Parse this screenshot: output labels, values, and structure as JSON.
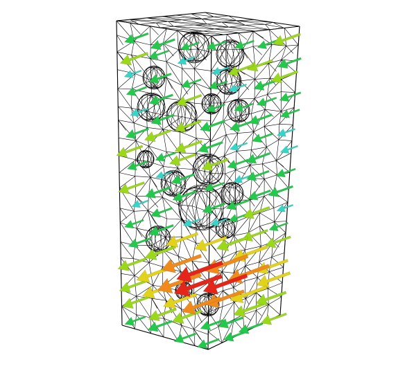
{
  "scene": {
    "background": "#ffffff",
    "mesh_color": "#000000",
    "arrow_colors": {
      "low": "#33d6c8",
      "mid_low": "#22c94a",
      "mid": "#9ad81a",
      "mid_high": "#e3d21a",
      "high": "#f08a1a",
      "max": "#e4261a"
    }
  }
}
